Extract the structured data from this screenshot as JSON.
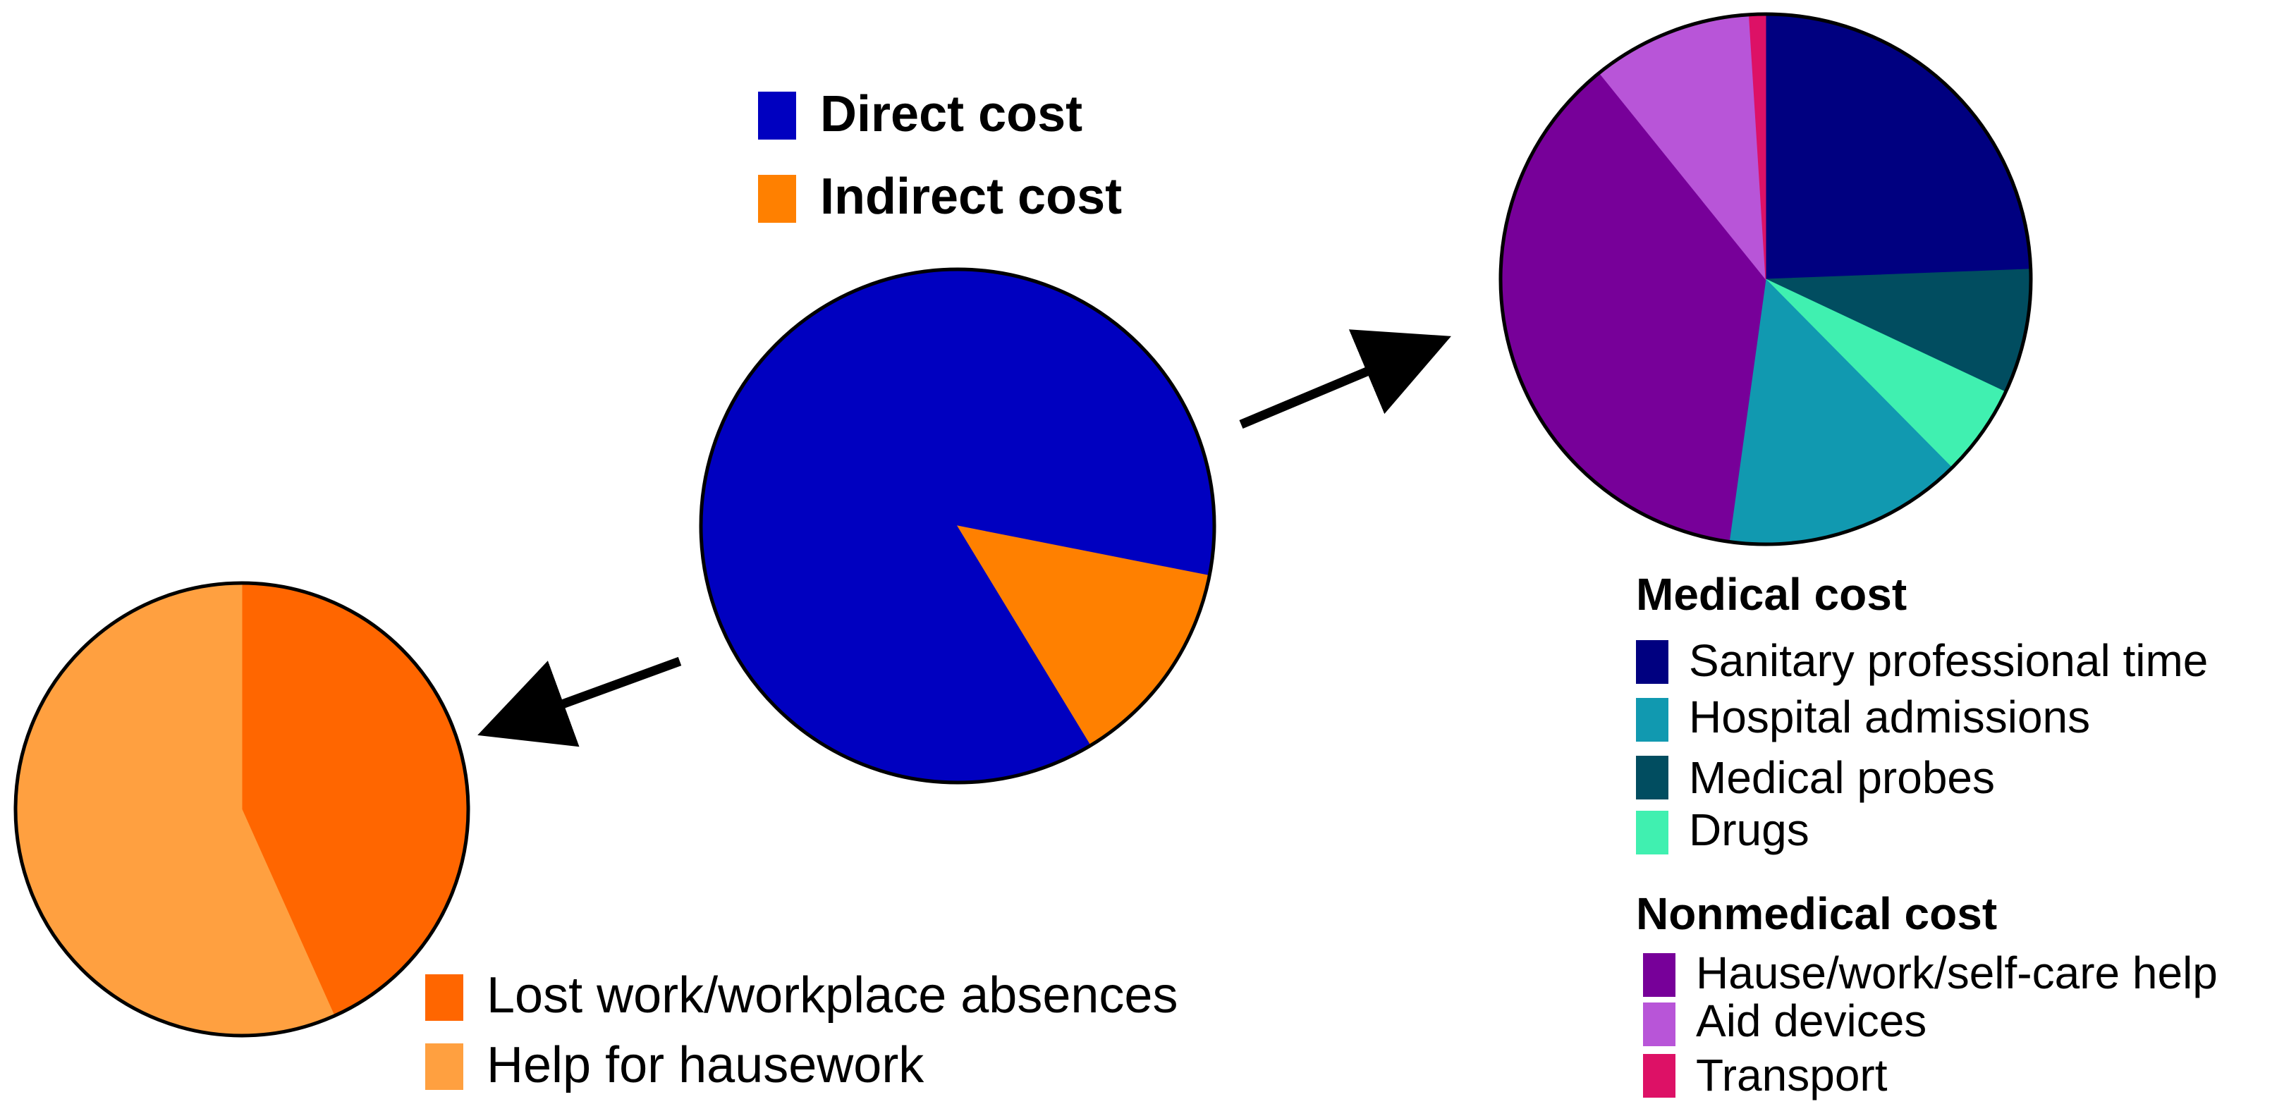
{
  "chart_data": [
    {
      "type": "pie",
      "title": "",
      "legend": "top",
      "slices": [
        {
          "label": "Direct cost",
          "value": 86.8,
          "color": "#0000C0"
        },
        {
          "label": "Indirect cost",
          "value": 13.2,
          "color": "#FF8000"
        }
      ]
    },
    {
      "type": "pie",
      "title": "",
      "legend": "bottom",
      "slices": [
        {
          "label": "Lost work/workplace absences",
          "value": 43.3,
          "color": "#FF6600"
        },
        {
          "label": "Help for hausework",
          "value": 56.7,
          "color": "#FFA040"
        }
      ]
    },
    {
      "type": "pie",
      "title": "",
      "legend": "bottom",
      "groups": [
        {
          "title": "Medical cost",
          "items": [
            {
              "label": "Sanitary professional time",
              "color": "#000080"
            },
            {
              "label": "Hospital admissions",
              "color": "#1199B0"
            },
            {
              "label": "Medical probes",
              "color": "#014D60"
            },
            {
              "label": "Drugs",
              "color": "#40F0B0"
            }
          ]
        },
        {
          "title": "Nonmedical cost",
          "items": [
            {
              "label": "Hause/work/self-care help",
              "color": "#770099"
            },
            {
              "label": "Aid devices",
              "color": "#B855D8"
            },
            {
              "label": "Transport",
              "color": "#DD1166"
            }
          ]
        }
      ],
      "slices": [
        {
          "label": "Sanitary professional time",
          "value": 24.4,
          "color": "#000080"
        },
        {
          "label": "Medical probes",
          "value": 7.6,
          "color": "#014D60"
        },
        {
          "label": "Drugs",
          "value": 5.6,
          "color": "#40F0B0"
        },
        {
          "label": "Hospital admissions",
          "value": 14.6,
          "color": "#1199B0"
        },
        {
          "label": "Hause/work/self-care help",
          "value": 37.0,
          "color": "#770099"
        },
        {
          "label": "Aid devices",
          "value": 9.8,
          "color": "#B855D8"
        },
        {
          "label": "Transport",
          "value": 1.0,
          "color": "#DD1166"
        }
      ]
    }
  ]
}
